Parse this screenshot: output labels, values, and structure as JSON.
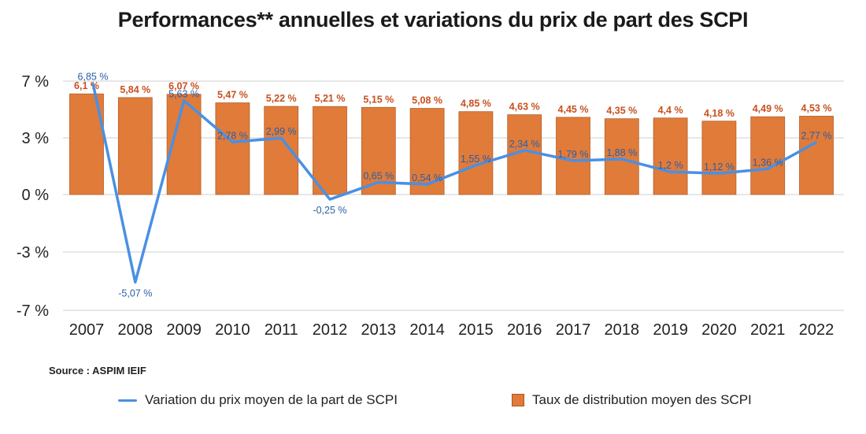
{
  "title": "Performances** annuelles et variations du prix de part des SCPI",
  "source": "Source : ASPIM IEIF",
  "legend": {
    "line_label": "Variation du prix moyen de la part de SCPI",
    "bar_label": "Taux de distribution moyen des SCPI"
  },
  "colors": {
    "bar": "#e07b39",
    "bar_label": "#c8501e",
    "line": "#4a90e2",
    "line_label": "#2a5ea8",
    "grid": "#cfcfcf"
  },
  "chart_data": {
    "type": "bar",
    "categories": [
      "2007",
      "2008",
      "2009",
      "2010",
      "2011",
      "2012",
      "2013",
      "2014",
      "2015",
      "2016",
      "2017",
      "2018",
      "2019",
      "2020",
      "2021",
      "2022"
    ],
    "y_ticks": [
      {
        "value": 7,
        "label": "7 %"
      },
      {
        "value": 3,
        "label": "3 %"
      },
      {
        "value": 0,
        "label": "0 %"
      },
      {
        "value": -3,
        "label": "-3 %"
      },
      {
        "value": -7,
        "label": "-7 %"
      }
    ],
    "series": [
      {
        "name": "Taux de distribution moyen des SCPI",
        "type": "bar",
        "values": [
          6.1,
          5.84,
          6.07,
          5.47,
          5.22,
          5.21,
          5.15,
          5.08,
          4.85,
          4.63,
          4.45,
          4.35,
          4.4,
          4.18,
          4.49,
          4.53
        ],
        "labels": [
          "6,1 %",
          "5,84 %",
          "6,07 %",
          "5,47 %",
          "5,22 %",
          "5,21 %",
          "5,15 %",
          "5,08 %",
          "4,85 %",
          "4,63 %",
          "4,45 %",
          "4,35 %",
          "4,4 %",
          "4,18 %",
          "4,49 %",
          "4,53 %"
        ]
      },
      {
        "name": "Variation du prix moyen de la part de SCPI",
        "type": "line",
        "values": [
          6.85,
          -5.07,
          5.63,
          2.78,
          2.99,
          -0.25,
          0.65,
          0.54,
          1.55,
          2.34,
          1.79,
          1.88,
          1.2,
          1.12,
          1.36,
          2.77
        ],
        "labels": [
          "6,85 %",
          "-5,07 %",
          "5,63 %",
          "2,78 %",
          "2,99 %",
          "-0,25 %",
          "0,65 %",
          "0,54 %",
          "1,55 %",
          "2,34 %",
          "1,79 %",
          "1,88 %",
          "1,2 %",
          "1,12 %",
          "1,36 %",
          "2,77 %"
        ]
      }
    ],
    "grid": true,
    "legend_position": "bottom"
  }
}
